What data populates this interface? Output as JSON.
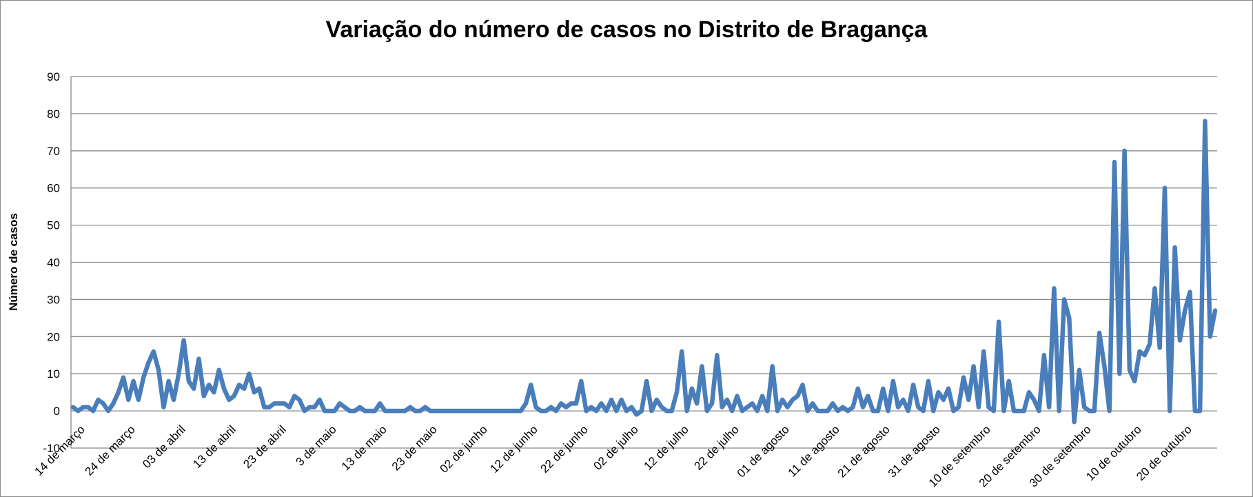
{
  "chart_data": {
    "type": "line",
    "title": "Variação do número de casos no Distrito de Bragança",
    "xlabel": "",
    "ylabel": "Número de casos",
    "ylim": [
      -10,
      90
    ],
    "y_ticks": [
      -10,
      0,
      10,
      20,
      30,
      40,
      50,
      60,
      70,
      80,
      90
    ],
    "grid": true,
    "legend": "none",
    "line_color": "#4a7ebb",
    "x_tick_labels": [
      "14 de março",
      "24 de março",
      "03 de abril",
      "13 de abril",
      "23 de abril",
      "3 de maio",
      "13 de maio",
      "23 de maio",
      "02 de junho",
      "12 de junho",
      "22 de junho",
      "02 de julho",
      "12 de julho",
      "22 de julho",
      "01 de agosto",
      "11 de agosto",
      "21 de agosto",
      "31 de agosto",
      "10 de setembro",
      "20 de setembro",
      "30 de setembro",
      "10 de outubro",
      "20 de outubro"
    ],
    "x_tick_every": 10,
    "series": [
      {
        "values": [
          1,
          0,
          1,
          1,
          0,
          3,
          2,
          0,
          2,
          5,
          9,
          3,
          8,
          3,
          9,
          13,
          16,
          11,
          1,
          8,
          3,
          10,
          19,
          8,
          6,
          14,
          4,
          7,
          5,
          11,
          6,
          3,
          4,
          7,
          6,
          10,
          5,
          6,
          1,
          1,
          2,
          2,
          2,
          1,
          4,
          3,
          0,
          1,
          1,
          3,
          0,
          0,
          0,
          2,
          1,
          0,
          0,
          1,
          0,
          0,
          0,
          2,
          0,
          0,
          0,
          0,
          0,
          1,
          0,
          0,
          1,
          0,
          0,
          0,
          0,
          0,
          0,
          0,
          0,
          0,
          0,
          0,
          0,
          0,
          0,
          0,
          0,
          0,
          0,
          0,
          2,
          7,
          1,
          0,
          0,
          1,
          0,
          2,
          1,
          2,
          2,
          8,
          0,
          1,
          0,
          2,
          0,
          3,
          0,
          3,
          0,
          1,
          -1,
          0,
          8,
          0,
          3,
          1,
          0,
          0,
          5,
          16,
          0,
          6,
          2,
          12,
          0,
          2,
          15,
          1,
          3,
          0,
          4,
          0,
          1,
          2,
          0,
          4,
          0,
          12,
          0,
          3,
          1,
          3,
          4,
          7,
          0,
          2,
          0,
          0,
          0,
          2,
          0,
          1,
          0,
          1,
          6,
          1,
          4,
          0,
          0,
          6,
          0,
          8,
          1,
          3,
          0,
          7,
          1,
          0,
          8,
          0,
          5,
          3,
          6,
          0,
          1,
          9,
          3,
          12,
          1,
          16,
          1,
          0,
          24,
          0,
          8,
          0,
          0,
          0,
          5,
          3,
          0,
          15,
          1,
          33,
          0,
          30,
          25,
          -3,
          11,
          1,
          0,
          0,
          21,
          12,
          0,
          67,
          10,
          70,
          11,
          8,
          16,
          15,
          18,
          33,
          17,
          60,
          0,
          44,
          19,
          27,
          32,
          0,
          0,
          78,
          20,
          27
        ]
      }
    ]
  }
}
